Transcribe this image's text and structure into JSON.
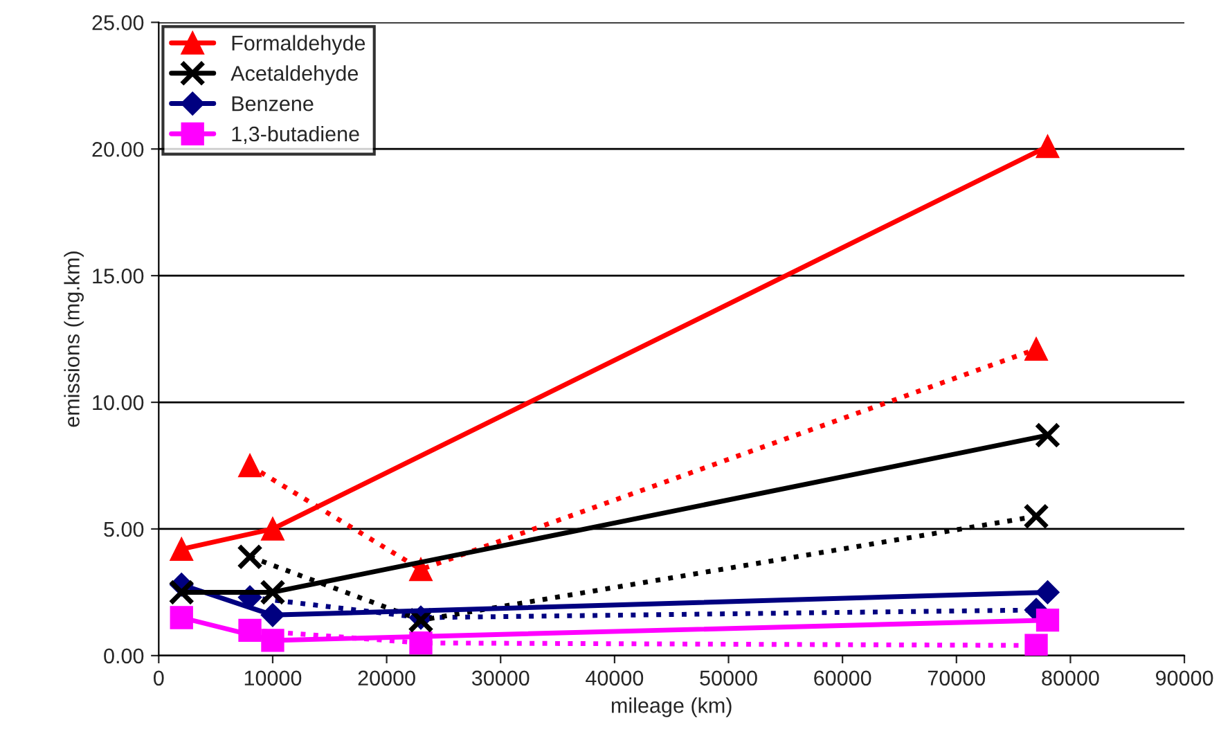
{
  "chart_data": {
    "type": "line",
    "xlabel": "mileage (km)",
    "ylabel": "emissions (mg.km)",
    "xlim": [
      0,
      90000
    ],
    "xticks": [
      0,
      10000,
      20000,
      30000,
      40000,
      50000,
      60000,
      70000,
      80000,
      90000
    ],
    "ylim": [
      0,
      25
    ],
    "yticks": [
      {
        "value": 0,
        "label": "0.00"
      },
      {
        "value": 5,
        "label": "5.00"
      },
      {
        "value": 10,
        "label": "10.00"
      },
      {
        "value": 15,
        "label": "15.00"
      },
      {
        "value": 20,
        "label": "20.00"
      },
      {
        "value": 25,
        "label": "25.00"
      }
    ],
    "grid": "y",
    "legend": "top left",
    "series": [
      {
        "name": "Formaldehyde",
        "color": "#ff0000",
        "marker": "triangle",
        "line_style": "solid",
        "x": [
          2000,
          10000,
          78000
        ],
        "values": [
          4.2,
          5.0,
          20.1
        ]
      },
      {
        "name": "Acetaldehyde",
        "color": "#000000",
        "marker": "cross",
        "line_style": "solid",
        "x": [
          2000,
          10000,
          78000
        ],
        "values": [
          2.5,
          2.5,
          8.7
        ]
      },
      {
        "name": "Benzene",
        "color": "#000080",
        "marker": "diamond",
        "line_style": "solid",
        "x": [
          2000,
          10000,
          78000
        ],
        "values": [
          2.8,
          1.6,
          2.5
        ]
      },
      {
        "name": "1,3-butadiene",
        "color": "#ff00ff",
        "marker": "square",
        "line_style": "solid",
        "x": [
          2000,
          10000,
          78000
        ],
        "values": [
          1.5,
          0.6,
          1.4
        ]
      },
      {
        "color": "#ff0000",
        "marker": "triangle",
        "line_style": "dotted",
        "x": [
          8000,
          23000,
          77000
        ],
        "values": [
          7.5,
          3.4,
          12.1
        ]
      },
      {
        "color": "#000000",
        "marker": "cross",
        "line_style": "dotted",
        "x": [
          8000,
          23000,
          77000
        ],
        "values": [
          3.9,
          1.4,
          5.5
        ]
      },
      {
        "color": "#000080",
        "marker": "diamond",
        "line_style": "dotted",
        "x": [
          8000,
          23000,
          77000
        ],
        "values": [
          2.3,
          1.5,
          1.8
        ]
      },
      {
        "color": "#ff00ff",
        "marker": "square",
        "line_style": "dotted",
        "x": [
          8000,
          23000,
          77000
        ],
        "values": [
          1.0,
          0.5,
          0.4
        ]
      }
    ]
  }
}
